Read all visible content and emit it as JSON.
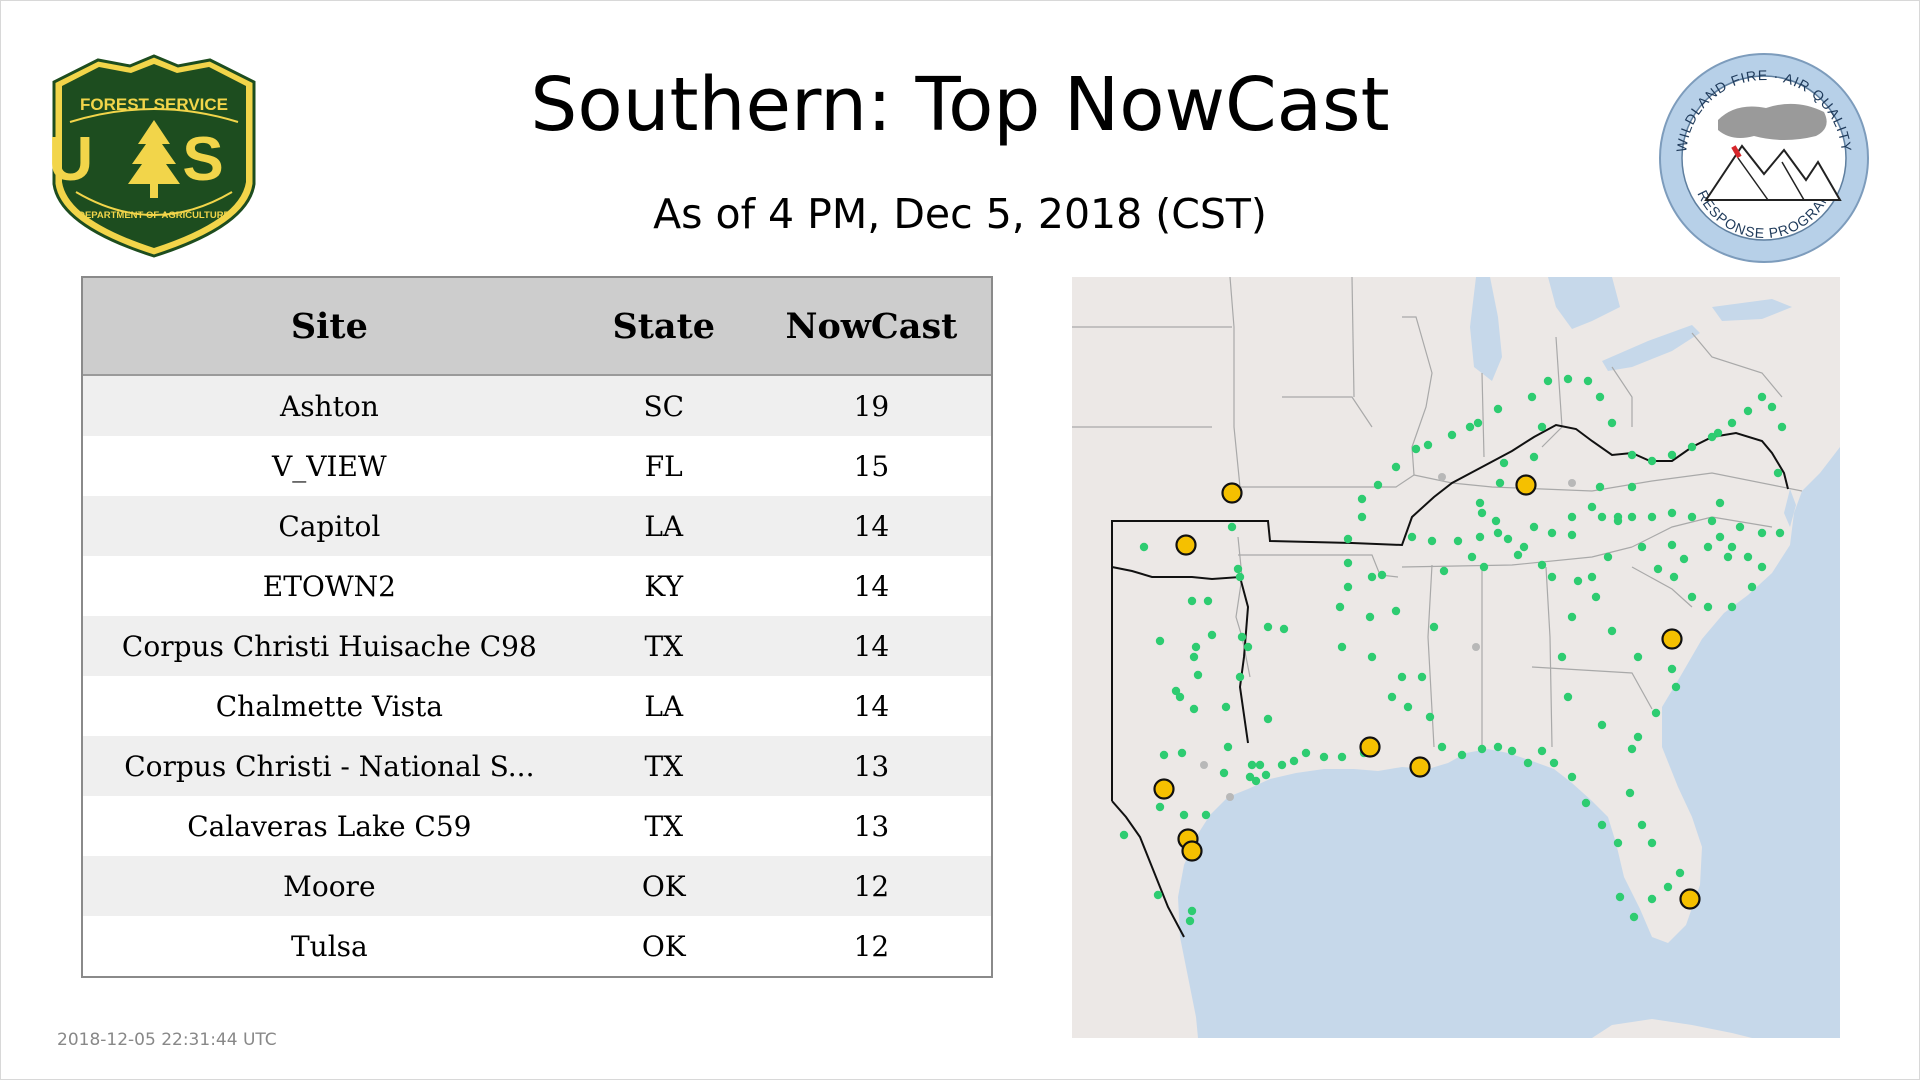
{
  "header": {
    "title": "Southern: Top NowCast",
    "subtitle": "As of  4 PM, Dec  5, 2018 (CST)"
  },
  "logos": {
    "forest_service": {
      "top_text": "FOREST SERVICE",
      "letters": "U S",
      "bottom_text": "DEPARTMENT OF AGRICULTURE",
      "colors": {
        "green": "#1d4d1f",
        "gold": "#f2d54a"
      }
    },
    "wildland_fire": {
      "top_text": "WILDLAND FIRE · AIR QUALITY",
      "bottom_text": "RESPONSE PROGRAM",
      "ring_color": "#b7d0e8"
    }
  },
  "table": {
    "columns": [
      "Site",
      "State",
      "NowCast"
    ],
    "rows": [
      {
        "site": "Ashton",
        "state": "SC",
        "nowcast": "19"
      },
      {
        "site": "V_VIEW",
        "state": "FL",
        "nowcast": "15"
      },
      {
        "site": "Capitol",
        "state": "LA",
        "nowcast": "14"
      },
      {
        "site": "ETOWN2",
        "state": "KY",
        "nowcast": "14"
      },
      {
        "site": "Corpus Christi Huisache C98",
        "state": "TX",
        "nowcast": "14"
      },
      {
        "site": "Chalmette Vista",
        "state": "LA",
        "nowcast": "14"
      },
      {
        "site": "Corpus Christi - National S...",
        "state": "TX",
        "nowcast": "13"
      },
      {
        "site": "Calaveras Lake C59",
        "state": "TX",
        "nowcast": "13"
      },
      {
        "site": "Moore",
        "state": "OK",
        "nowcast": "12"
      },
      {
        "site": "Tulsa",
        "state": "OK",
        "nowcast": "12"
      }
    ]
  },
  "map": {
    "colors": {
      "land": "#ece8e6",
      "water": "#c6d8ea",
      "region_border": "#111111",
      "state_border": "#a9a9a9",
      "monitor": "#2ecc71",
      "top_site": "#f5c000",
      "offline": "#b8b8b8"
    }
  },
  "footer": {
    "timestamp": "2018-12-05 22:31:44 UTC"
  }
}
